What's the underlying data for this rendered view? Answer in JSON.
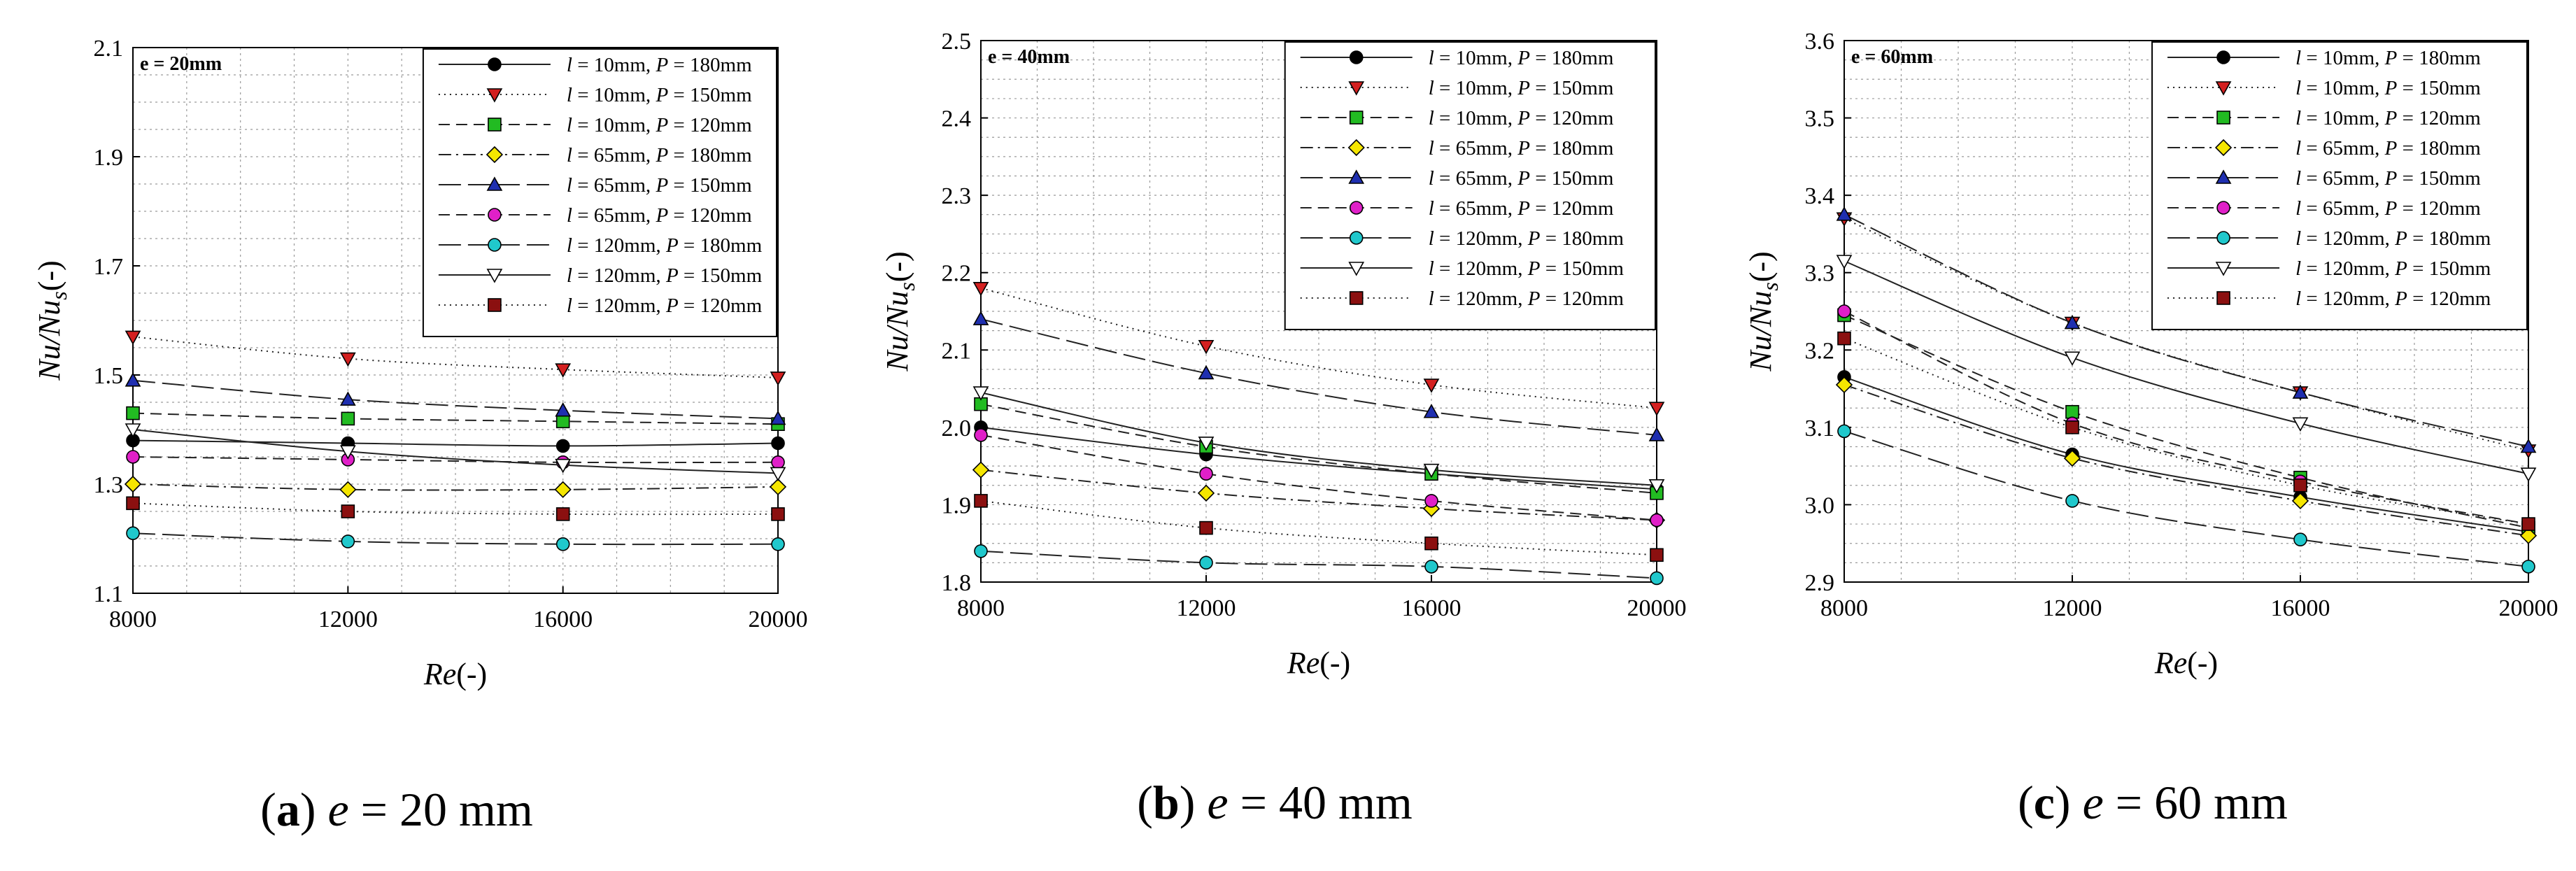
{
  "figure": {
    "panels": [
      {
        "caption_letter": "a",
        "caption_var": "e",
        "caption_rest": " = 20 mm"
      },
      {
        "caption_letter": "b",
        "caption_var": "e",
        "caption_rest": " = 40 mm"
      },
      {
        "caption_letter": "c",
        "caption_var": "e",
        "caption_rest": " = 60 mm"
      }
    ]
  },
  "colors": {
    "black": "#000000",
    "red": "#d42020",
    "green": "#22bb22",
    "yellow": "#f5e600",
    "blue": "#1f2fb0",
    "magenta": "#e020c8",
    "cyan": "#20c8cc",
    "white": "#ffffff",
    "maroon": "#8b1010"
  },
  "chart_data": [
    {
      "type": "line",
      "annotation": "e = 20mm",
      "xlabel": "Re(-)",
      "ylabel": "Nu/Nus(-)",
      "xlim": [
        8000,
        20000
      ],
      "ylim": [
        1.1,
        2.1
      ],
      "xticks": [
        "8000",
        "12000",
        "16000",
        "20000"
      ],
      "yticks": [
        "1.1",
        "1.3",
        "1.5",
        "1.7",
        "1.9",
        "2.1"
      ],
      "grid": true,
      "legend_position": "top-right",
      "x": [
        8000,
        12000,
        16000,
        20000
      ],
      "series": [
        {
          "l": "l = 10mm, ",
          "p": "P = 180mm",
          "marker": "circle",
          "color": "black",
          "dash": "solid",
          "values": [
            1.38,
            1.375,
            1.37,
            1.375
          ]
        },
        {
          "l": "l = 10mm, ",
          "p": "P = 150mm",
          "marker": "triangle-down",
          "color": "red",
          "dash": "dotted",
          "values": [
            1.57,
            1.53,
            1.51,
            1.495
          ]
        },
        {
          "l": "l = 10mm, ",
          "p": "P = 120mm",
          "marker": "square",
          "color": "green",
          "dash": "dashed",
          "values": [
            1.43,
            1.42,
            1.415,
            1.41
          ]
        },
        {
          "l": "l = 65mm, ",
          "p": "P = 180mm",
          "marker": "diamond",
          "color": "yellow",
          "dash": "dashdot",
          "values": [
            1.3,
            1.29,
            1.29,
            1.295
          ]
        },
        {
          "l": "l = 65mm, ",
          "p": "P = 150mm",
          "marker": "triangle-up",
          "color": "blue",
          "dash": "longdash",
          "values": [
            1.49,
            1.455,
            1.435,
            1.42
          ]
        },
        {
          "l": "l = 65mm, ",
          "p": "P = 120mm",
          "marker": "circle",
          "color": "magenta",
          "dash": "dashed",
          "values": [
            1.35,
            1.345,
            1.34,
            1.34
          ]
        },
        {
          "l": "l = 120mm, ",
          "p": "P = 180mm",
          "marker": "circle",
          "color": "cyan",
          "dash": "longdash",
          "values": [
            1.21,
            1.195,
            1.19,
            1.19
          ]
        },
        {
          "l": "l = 120mm, ",
          "p": "P = 150mm",
          "marker": "triangle-down",
          "color": "white",
          "dash": "solid",
          "values": [
            1.4,
            1.36,
            1.335,
            1.32
          ]
        },
        {
          "l": "l = 120mm, ",
          "p": "P = 120mm",
          "marker": "square",
          "color": "maroon",
          "dash": "dotted",
          "values": [
            1.265,
            1.25,
            1.245,
            1.245
          ]
        }
      ]
    },
    {
      "type": "line",
      "annotation": "e = 40mm",
      "xlabel": "Re(-)",
      "ylabel": "Nu/Nus(-)",
      "xlim": [
        8000,
        20000
      ],
      "ylim": [
        1.8,
        2.5
      ],
      "xticks": [
        "8000",
        "12000",
        "16000",
        "20000"
      ],
      "yticks": [
        "1.8",
        "1.9",
        "2.0",
        "2.1",
        "2.2",
        "2.3",
        "2.4",
        "2.5"
      ],
      "grid": true,
      "legend_position": "top-right",
      "x": [
        8000,
        12000,
        16000,
        20000
      ],
      "series": [
        {
          "l": "l = 10mm, ",
          "p": "P = 180mm",
          "marker": "circle",
          "color": "black",
          "dash": "solid",
          "values": [
            2.0,
            1.965,
            1.94,
            1.92
          ]
        },
        {
          "l": "l = 10mm, ",
          "p": "P = 150mm",
          "marker": "triangle-down",
          "color": "red",
          "dash": "dotted",
          "values": [
            2.18,
            2.105,
            2.055,
            2.025
          ]
        },
        {
          "l": "l = 10mm, ",
          "p": "P = 120mm",
          "marker": "square",
          "color": "green",
          "dash": "dashed",
          "values": [
            2.03,
            1.975,
            1.94,
            1.915
          ]
        },
        {
          "l": "l = 65mm, ",
          "p": "P = 180mm",
          "marker": "diamond",
          "color": "yellow",
          "dash": "dashdot",
          "values": [
            1.945,
            1.915,
            1.895,
            1.88
          ]
        },
        {
          "l": "l = 65mm, ",
          "p": "P = 150mm",
          "marker": "triangle-up",
          "color": "blue",
          "dash": "longdash",
          "values": [
            2.14,
            2.07,
            2.02,
            1.99
          ]
        },
        {
          "l": "l = 65mm, ",
          "p": "P = 120mm",
          "marker": "circle",
          "color": "magenta",
          "dash": "dashed",
          "values": [
            1.99,
            1.94,
            1.905,
            1.88
          ]
        },
        {
          "l": "l = 120mm, ",
          "p": "P = 180mm",
          "marker": "circle",
          "color": "cyan",
          "dash": "longdash",
          "values": [
            1.84,
            1.825,
            1.82,
            1.805
          ]
        },
        {
          "l": "l = 120mm, ",
          "p": "P = 150mm",
          "marker": "triangle-down",
          "color": "white",
          "dash": "solid",
          "values": [
            2.045,
            1.98,
            1.945,
            1.925
          ]
        },
        {
          "l": "l = 120mm, ",
          "p": "P = 120mm",
          "marker": "square",
          "color": "maroon",
          "dash": "dotted",
          "values": [
            1.905,
            1.87,
            1.85,
            1.835
          ]
        }
      ]
    },
    {
      "type": "line",
      "annotation": "e = 60mm",
      "xlabel": "Re(-)",
      "ylabel": "Nu/Nus(-)",
      "xlim": [
        8000,
        20000
      ],
      "ylim": [
        2.9,
        3.6
      ],
      "xticks": [
        "8000",
        "12000",
        "16000",
        "20000"
      ],
      "yticks": [
        "2.9",
        "3.0",
        "3.1",
        "3.2",
        "3.3",
        "3.4",
        "3.5",
        "3.6"
      ],
      "grid": true,
      "legend_position": "top-right",
      "x": [
        8000,
        12000,
        16000,
        20000
      ],
      "series": [
        {
          "l": "l = 10mm, ",
          "p": "P = 180mm",
          "marker": "circle",
          "color": "black",
          "dash": "solid",
          "values": [
            3.165,
            3.065,
            3.01,
            2.965
          ]
        },
        {
          "l": "l = 10mm, ",
          "p": "P = 150mm",
          "marker": "triangle-down",
          "color": "red",
          "dash": "dotted",
          "values": [
            3.37,
            3.235,
            3.145,
            3.07
          ]
        },
        {
          "l": "l = 10mm, ",
          "p": "P = 120mm",
          "marker": "square",
          "color": "green",
          "dash": "dashed",
          "values": [
            3.245,
            3.12,
            3.035,
            2.97
          ]
        },
        {
          "l": "l = 65mm, ",
          "p": "P = 180mm",
          "marker": "diamond",
          "color": "yellow",
          "dash": "dashdot",
          "values": [
            3.155,
            3.06,
            3.005,
            2.96
          ]
        },
        {
          "l": "l = 65mm, ",
          "p": "P = 150mm",
          "marker": "triangle-up",
          "color": "blue",
          "dash": "longdash",
          "values": [
            3.375,
            3.235,
            3.145,
            3.075
          ]
        },
        {
          "l": "l = 65mm, ",
          "p": "P = 120mm",
          "marker": "circle",
          "color": "magenta",
          "dash": "dashed",
          "values": [
            3.25,
            3.105,
            3.03,
            2.975
          ]
        },
        {
          "l": "l = 120mm, ",
          "p": "P = 180mm",
          "marker": "circle",
          "color": "cyan",
          "dash": "longdash",
          "values": [
            3.095,
            3.005,
            2.955,
            2.92
          ]
        },
        {
          "l": "l = 120mm, ",
          "p": "P = 150mm",
          "marker": "triangle-down",
          "color": "white",
          "dash": "solid",
          "values": [
            3.315,
            3.19,
            3.105,
            3.04
          ]
        },
        {
          "l": "l = 120mm, ",
          "p": "P = 120mm",
          "marker": "square",
          "color": "maroon",
          "dash": "dotted",
          "values": [
            3.215,
            3.1,
            3.025,
            2.975
          ]
        }
      ]
    }
  ]
}
